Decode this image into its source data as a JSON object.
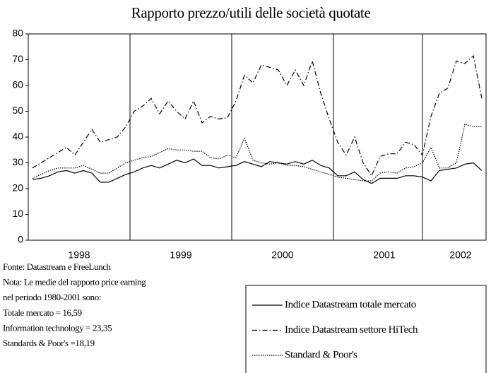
{
  "chart_data": {
    "type": "line",
    "title": "Rapporto prezzo/utili delle società quotate",
    "categories": [
      null,
      null,
      null,
      null,
      null,
      null,
      "1998",
      null,
      null,
      null,
      null,
      null,
      null,
      null,
      null,
      null,
      null,
      null,
      "1999",
      null,
      null,
      null,
      null,
      null,
      null,
      null,
      null,
      null,
      null,
      null,
      "2000",
      null,
      null,
      null,
      null,
      null,
      null,
      null,
      null,
      null,
      null,
      null,
      "2001",
      null,
      null,
      null,
      null,
      null,
      null,
      null,
      null,
      "2002",
      null,
      null
    ],
    "ylim": [
      0,
      80
    ],
    "yticks": [
      0,
      10,
      20,
      30,
      40,
      50,
      60,
      70,
      80
    ],
    "series": [
      {
        "name": "Indice Datastream totale mercato",
        "color": "#000000",
        "dash": "solid",
        "values": [
          23.5,
          24,
          25,
          26.5,
          27,
          26,
          27,
          26,
          22.5,
          22.5,
          24,
          25.5,
          26.5,
          28,
          29,
          28,
          29.5,
          31,
          30,
          31.5,
          29,
          29,
          28,
          28.5,
          29,
          30.5,
          29.5,
          28.5,
          30.5,
          30,
          29.5,
          30.5,
          29.5,
          31,
          29,
          28,
          25,
          25,
          26.5,
          23.5,
          22,
          24,
          24,
          24,
          25,
          25,
          24.5,
          23,
          27,
          27.5,
          28,
          29.5,
          30,
          27
        ]
      },
      {
        "name": "Indice Datastream settore HiTech",
        "color": "#000000",
        "dash": "dashdot",
        "values": [
          28,
          30,
          32,
          34,
          36,
          33,
          38,
          43,
          38,
          39,
          40,
          44,
          50,
          52,
          55,
          49,
          54,
          50,
          47,
          54,
          45.5,
          48,
          47,
          47.5,
          54,
          64,
          61,
          68,
          67,
          66,
          60,
          66,
          60,
          69.5,
          57,
          47,
          38,
          33,
          40,
          30,
          25,
          32.5,
          33.5,
          33.5,
          38,
          37,
          33,
          48,
          57,
          59,
          69.5,
          68.5,
          71.5,
          55
        ]
      },
      {
        "name": "Standard & Poor's",
        "color": "#000000",
        "dash": "dotted",
        "values": [
          24,
          25.5,
          27,
          28,
          28,
          28,
          29,
          27.5,
          26,
          26,
          28,
          30,
          31,
          32,
          32.5,
          34,
          35.5,
          35,
          35,
          34.5,
          34.5,
          32,
          31.5,
          33,
          32,
          39.5,
          31,
          30,
          29.5,
          30,
          29,
          29,
          28.5,
          27.5,
          26.5,
          25.5,
          24.5,
          24,
          23.5,
          23,
          23,
          26,
          26.5,
          26,
          28,
          28.5,
          30,
          36,
          28,
          28,
          30,
          45,
          44,
          44
        ]
      }
    ],
    "notes": [
      "Fonte: Datastream e FreeLunch",
      "Nota: Le medie del rapporto price earning",
      "nel periodo 1980-2001 sono:",
      "Totale mercato = 16,59",
      "Information technology = 23,35",
      "Standards & Poor's =18,19"
    ]
  }
}
